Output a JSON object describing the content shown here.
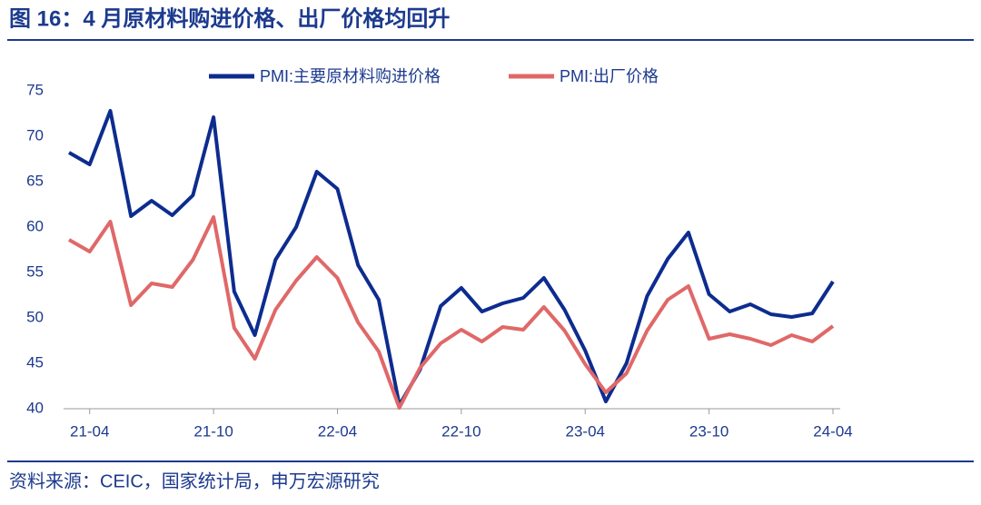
{
  "chart_data": {
    "type": "line",
    "title": "图 16：4 月原材料购进价格、出厂价格均回升",
    "source": "资料来源：CEIC，国家统计局，申万宏源研究",
    "categories": [
      null,
      "21-04",
      null,
      null,
      null,
      null,
      null,
      "21-10",
      null,
      null,
      null,
      null,
      null,
      "22-04",
      null,
      null,
      null,
      null,
      null,
      "22-10",
      null,
      null,
      null,
      null,
      null,
      "23-04",
      null,
      null,
      null,
      null,
      null,
      "23-10",
      null,
      null,
      null,
      null,
      null,
      "24-04"
    ],
    "series": [
      {
        "name": "PMI:主要原材料购进价格",
        "color": "#0d2c8f",
        "values": [
          68.2,
          66.9,
          72.8,
          61.2,
          62.9,
          61.3,
          63.5,
          72.1,
          52.9,
          48.1,
          56.4,
          60.0,
          66.1,
          64.2,
          55.8,
          52.0,
          40.4,
          44.3,
          51.3,
          53.3,
          50.7,
          51.6,
          52.2,
          54.4,
          50.9,
          46.4,
          40.8,
          45.0,
          52.4,
          56.5,
          59.4,
          52.6,
          50.7,
          51.5,
          50.4,
          50.1,
          50.5,
          54.0
        ]
      },
      {
        "name": "PMI:出厂价格",
        "color": "#e06868",
        "values": [
          58.6,
          57.3,
          60.6,
          51.4,
          53.8,
          53.4,
          56.4,
          61.1,
          48.9,
          45.5,
          50.9,
          54.1,
          56.7,
          54.4,
          49.5,
          46.3,
          40.1,
          44.5,
          47.2,
          48.7,
          47.4,
          49.0,
          48.7,
          51.2,
          48.6,
          44.9,
          41.8,
          43.9,
          48.6,
          52.0,
          53.5,
          47.7,
          48.2,
          47.7,
          47.0,
          48.1,
          47.4,
          49.1
        ]
      }
    ],
    "ylim": [
      40,
      75
    ],
    "yticks": [
      40,
      45,
      50,
      55,
      60,
      65,
      70,
      75
    ],
    "grid": false,
    "legend": "top"
  }
}
